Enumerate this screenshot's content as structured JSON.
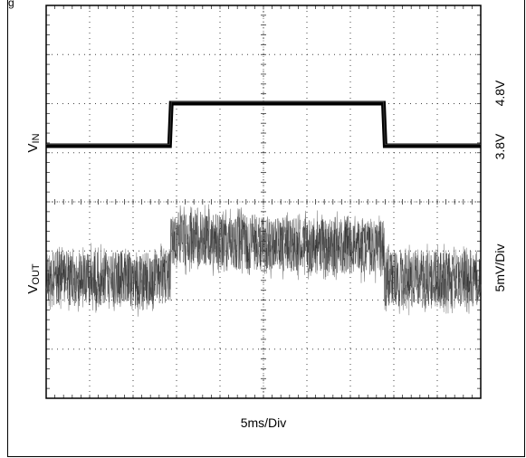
{
  "top_label": "g",
  "chart_data": {
    "type": "line",
    "xlabel": "5ms/Div",
    "x_divisions": 10,
    "y_divisions": 8,
    "x_unit": "ms",
    "ms_per_div": 5,
    "grid": true,
    "series": [
      {
        "name": "VIN",
        "label_main": "V",
        "label_sub": "IN",
        "scale_labels": [
          "3.8V",
          "4.8V"
        ],
        "x": [
          0,
          14.2,
          14.4,
          38.8,
          39.0,
          50
        ],
        "y": [
          3.8,
          3.8,
          4.8,
          4.8,
          3.8,
          3.8
        ]
      },
      {
        "name": "VOUT",
        "label_main": "V",
        "label_sub": "OUT",
        "scale_label": "5mV/Div",
        "x": [
          0,
          14.3,
          14.3,
          38.9,
          38.9,
          50
        ],
        "offset_mV": [
          0,
          0,
          4.2,
          3.0,
          0,
          0
        ],
        "noise_pp_mV": 8
      }
    ]
  }
}
